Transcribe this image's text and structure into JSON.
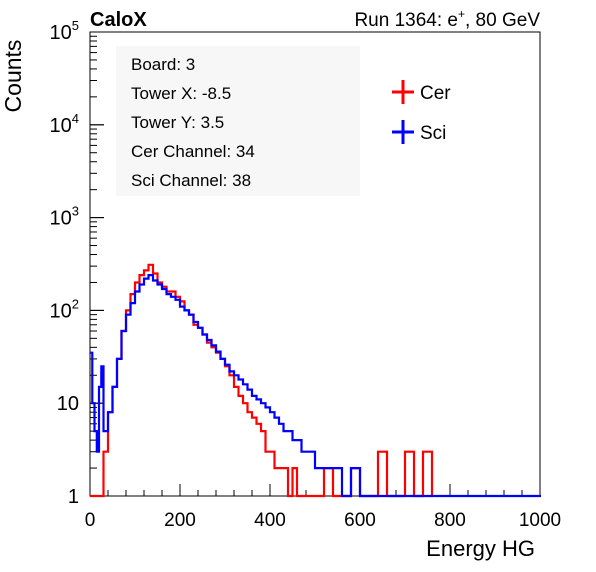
{
  "header": {
    "brand": "CaloX",
    "run_prefix": "Run 1364: e",
    "run_superscript": "+",
    "run_suffix": ", 80 GeV"
  },
  "info_box": [
    "Board: 3",
    "Tower X: -8.5",
    "Tower Y: 3.5",
    "Cer Channel: 34",
    "Sci Channel: 38"
  ],
  "colors": {
    "cer": "#ff0000",
    "sci": "#0000ff",
    "axis": "#000000",
    "info_bg": "#f7f7f7"
  },
  "chart_data": {
    "type": "line",
    "title": "",
    "xlabel": "Energy HG",
    "ylabel": "Counts",
    "xlim": [
      0,
      1000
    ],
    "ylim": [
      1,
      100000
    ],
    "y_scale": "log",
    "grid": false,
    "legend_position": "top-right",
    "x_ticks": [
      0,
      200,
      400,
      600,
      800,
      1000
    ],
    "x_tick_labels": [
      "0",
      "200",
      "400",
      "600",
      "800",
      "1000"
    ],
    "y_ticks": [
      1,
      10,
      100,
      1000,
      10000,
      100000
    ],
    "y_tick_labels": [
      {
        "base": "1",
        "exp": ""
      },
      {
        "base": "10",
        "exp": ""
      },
      {
        "base": "10",
        "exp": "2"
      },
      {
        "base": "10",
        "exp": "3"
      },
      {
        "base": "10",
        "exp": "4"
      },
      {
        "base": "10",
        "exp": "5"
      }
    ],
    "series": [
      {
        "name": "Cer",
        "color": "#ff0000",
        "x": [
          0,
          20,
          30,
          40,
          50,
          60,
          70,
          80,
          90,
          100,
          110,
          120,
          130,
          140,
          150,
          160,
          170,
          180,
          190,
          200,
          210,
          220,
          230,
          240,
          250,
          260,
          270,
          280,
          290,
          300,
          310,
          320,
          330,
          340,
          350,
          360,
          370,
          380,
          390,
          400,
          410,
          420,
          430,
          440,
          450,
          460,
          470,
          480,
          490,
          500,
          520,
          540,
          560,
          580,
          600,
          620,
          640,
          660,
          680,
          700,
          720,
          740,
          760
        ],
        "y": [
          1,
          1,
          3,
          8,
          15,
          30,
          60,
          100,
          150,
          200,
          240,
          270,
          310,
          250,
          200,
          180,
          160,
          160,
          140,
          125,
          100,
          90,
          70,
          65,
          55,
          45,
          40,
          35,
          30,
          25,
          20,
          15,
          12,
          10,
          8,
          7,
          6,
          5,
          3,
          3,
          2,
          2,
          2,
          1,
          2,
          1,
          1,
          1,
          1,
          1,
          2,
          1,
          1,
          2,
          1,
          1,
          3,
          1,
          1,
          3,
          1,
          3,
          1
        ]
      },
      {
        "name": "Sci",
        "color": "#0000ff",
        "x": [
          0,
          5,
          10,
          15,
          20,
          25,
          30,
          40,
          50,
          60,
          70,
          80,
          90,
          100,
          110,
          120,
          130,
          140,
          150,
          160,
          170,
          180,
          190,
          200,
          210,
          220,
          230,
          240,
          250,
          260,
          270,
          280,
          290,
          300,
          310,
          320,
          330,
          340,
          350,
          360,
          370,
          380,
          390,
          400,
          410,
          420,
          430,
          440,
          450,
          460,
          470,
          480,
          490,
          500,
          520,
          540,
          560,
          580,
          600,
          620,
          640,
          660,
          680,
          700,
          720,
          740,
          760,
          780,
          800,
          850,
          900,
          950,
          1000
        ],
        "y": [
          35,
          10,
          5,
          3,
          15,
          25,
          5,
          8,
          15,
          30,
          60,
          90,
          120,
          160,
          190,
          220,
          240,
          210,
          190,
          170,
          150,
          140,
          130,
          110,
          100,
          90,
          75,
          65,
          55,
          48,
          42,
          36,
          30,
          26,
          22,
          20,
          18,
          16,
          14,
          12,
          11,
          10,
          9,
          8,
          7,
          6,
          5,
          5,
          4,
          4,
          3,
          3,
          3,
          2,
          2,
          2,
          1,
          2,
          1,
          1,
          1,
          1,
          1,
          1,
          1,
          1,
          1,
          1,
          1,
          1,
          1,
          1,
          1
        ]
      }
    ]
  }
}
